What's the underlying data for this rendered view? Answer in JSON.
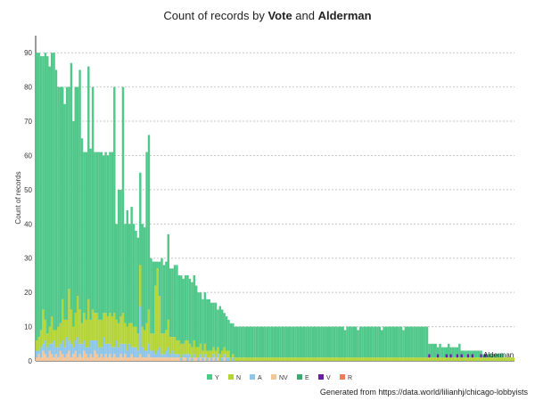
{
  "chart_data": {
    "type": "bar",
    "stacked": true,
    "title_parts": [
      "Count of records by ",
      "Vote",
      " and ",
      "Alderman"
    ],
    "ylabel": "Count of records",
    "xlabel": "",
    "ylim": [
      0,
      95
    ],
    "yticks": [
      0,
      10,
      20,
      30,
      40,
      50,
      60,
      70,
      80,
      90
    ],
    "grid": true,
    "legend_position": "bottom",
    "x_overlap_label": "Alderman",
    "series": [
      {
        "name": "Y",
        "color": "#50c88a"
      },
      {
        "name": "N",
        "color": "#b5d43a"
      },
      {
        "name": "A",
        "color": "#8ec5e8"
      },
      {
        "name": "NV",
        "color": "#f5c59a"
      },
      {
        "name": "E",
        "color": "#3aaa6e"
      },
      {
        "name": "V",
        "color": "#6a1fa0"
      },
      {
        "name": "R",
        "color": "#f07a5a"
      }
    ],
    "totals": [
      90,
      90,
      89,
      89,
      90,
      89,
      86,
      90,
      90,
      85,
      80,
      80,
      80,
      75,
      80,
      80,
      87,
      70,
      80,
      80,
      85,
      65,
      61,
      61,
      86,
      62,
      80,
      61,
      61,
      61,
      61,
      60,
      61,
      60,
      61,
      61,
      80,
      40,
      50,
      50,
      80,
      40,
      44,
      40,
      45,
      40,
      38,
      36,
      55,
      40,
      39,
      61,
      66,
      30,
      29,
      29,
      29,
      29,
      30,
      28,
      29,
      37,
      27,
      27,
      28,
      28,
      25,
      25,
      24,
      25,
      25,
      24,
      23,
      25,
      22,
      20,
      20,
      18,
      20,
      18,
      18,
      17,
      17,
      17,
      15,
      16,
      15,
      14,
      13,
      12,
      11,
      11,
      10,
      10,
      10,
      10,
      10,
      10,
      10,
      10,
      10,
      10,
      10,
      10,
      10,
      10,
      10,
      10,
      10,
      10,
      10,
      10,
      10,
      10,
      10,
      10,
      10,
      10,
      10,
      10,
      10,
      10,
      10,
      10,
      10,
      10,
      10,
      10,
      10,
      10,
      10,
      10,
      10,
      10,
      10,
      10,
      10,
      10,
      10,
      10,
      10,
      10,
      10,
      9,
      10,
      10,
      10,
      10,
      10,
      9,
      10,
      10,
      10,
      10,
      10,
      10,
      10,
      10,
      10,
      10,
      9,
      10,
      10,
      10,
      10,
      10,
      10,
      10,
      10,
      10,
      9,
      10,
      10,
      10,
      10,
      10,
      10,
      10,
      10,
      10,
      10,
      10,
      5,
      5,
      5,
      5,
      4,
      5,
      4,
      4,
      4,
      5,
      4,
      4,
      4,
      4,
      5,
      3,
      3,
      3,
      3,
      3,
      3,
      3,
      3,
      3,
      3,
      2,
      2,
      2,
      2,
      2,
      2,
      2,
      2,
      2,
      2,
      1,
      1,
      1,
      1,
      1
    ],
    "n_values": [
      3,
      4,
      5,
      10,
      6,
      4,
      5,
      8,
      3,
      5,
      6,
      6,
      12,
      8,
      5,
      15,
      10,
      6,
      8,
      12,
      10,
      6,
      8,
      8,
      14,
      6,
      9,
      8,
      8,
      8,
      8,
      7,
      9,
      8,
      9,
      9,
      10,
      6,
      7,
      8,
      9,
      6,
      7,
      6,
      7,
      6,
      6,
      5,
      12,
      6,
      6,
      8,
      10,
      5,
      5,
      20,
      24,
      15,
      6,
      6,
      6,
      8,
      5,
      4,
      5,
      4,
      4,
      4,
      3,
      4,
      4,
      3,
      3,
      4,
      3,
      3,
      3,
      2,
      3,
      2,
      2,
      2,
      2,
      2,
      2,
      2,
      2,
      2,
      2,
      2,
      1,
      1,
      1,
      1,
      1,
      1,
      1,
      1,
      1,
      1,
      1,
      1,
      1,
      1,
      1,
      1,
      1,
      1,
      1,
      1,
      1,
      1,
      1,
      1,
      1,
      1,
      1,
      1,
      1,
      1,
      1,
      1,
      1,
      1,
      1,
      1,
      1,
      1,
      1,
      1,
      1,
      1,
      1,
      1,
      1,
      1,
      1,
      1,
      1,
      1,
      1,
      1,
      1,
      1,
      1,
      1,
      1,
      1,
      1,
      1,
      1,
      1,
      1,
      1,
      1,
      1,
      1,
      1,
      1,
      1,
      1,
      1,
      1,
      1,
      1,
      1,
      1,
      1,
      1,
      1,
      1,
      1,
      1,
      1,
      1,
      1,
      1,
      1,
      1,
      1,
      1,
      1,
      1,
      1,
      1,
      1,
      1,
      1,
      1,
      1,
      1,
      1,
      1,
      1,
      1,
      1,
      1,
      1,
      1,
      1,
      1,
      1,
      1,
      1,
      1,
      1,
      1,
      1,
      1,
      1,
      1,
      1,
      1,
      1,
      1,
      1,
      1,
      1,
      1,
      1,
      1,
      1,
      1,
      1,
      1,
      1,
      1,
      1,
      1,
      1,
      1,
      1
    ],
    "a_values": [
      2,
      1,
      3,
      2,
      4,
      3,
      2,
      3,
      5,
      2,
      3,
      2,
      4,
      3,
      5,
      3,
      4,
      2,
      3,
      6,
      3,
      4,
      3,
      2,
      3,
      4,
      5,
      3,
      4,
      3,
      2,
      6,
      3,
      4,
      3,
      3,
      2,
      5,
      3,
      3,
      4,
      3,
      2,
      4,
      2,
      3,
      3,
      2,
      14,
      3,
      2,
      2,
      3,
      2,
      2,
      1,
      2,
      3,
      1,
      1,
      2,
      3,
      1,
      2,
      1,
      1,
      1,
      1,
      1,
      1,
      2,
      1,
      1,
      1,
      0,
      1,
      1,
      1,
      1,
      1,
      0,
      1,
      1,
      1,
      1,
      0,
      1,
      1,
      1,
      1,
      0,
      1,
      0,
      0,
      0,
      0,
      0,
      0,
      0,
      0,
      0,
      0,
      0,
      0,
      0,
      0,
      0,
      0,
      0,
      0,
      0,
      0,
      0,
      0,
      0,
      0,
      0,
      0,
      0,
      0,
      0,
      0,
      0,
      0,
      0,
      0,
      0,
      0,
      0,
      0,
      0,
      0,
      0,
      0,
      0,
      0,
      0,
      0,
      0,
      0,
      0,
      0,
      0,
      0,
      0,
      0,
      0,
      0,
      0,
      0,
      0,
      0,
      0,
      0,
      0,
      0,
      0,
      0,
      0,
      0,
      0,
      0,
      0,
      0,
      0,
      0,
      0,
      0,
      0,
      0,
      0,
      0,
      0,
      0,
      0,
      0,
      0,
      0,
      0,
      0,
      0,
      0,
      0,
      0,
      0,
      0,
      0,
      0,
      0,
      0,
      0,
      0,
      0,
      0,
      0,
      0,
      0,
      0,
      0,
      0,
      0,
      0,
      0,
      0,
      0,
      0,
      0,
      0,
      0,
      0,
      0,
      0,
      0,
      0,
      0,
      0,
      0,
      0,
      0,
      0,
      0,
      0,
      0,
      0
    ],
    "nv_values": [
      1,
      2,
      1,
      3,
      2,
      1,
      3,
      2,
      1,
      2,
      1,
      3,
      2,
      1,
      2,
      3,
      1,
      2,
      3,
      1,
      2,
      1,
      3,
      2,
      1,
      2,
      1,
      3,
      2,
      1,
      2,
      1,
      2,
      1,
      2,
      1,
      2,
      1,
      1,
      2,
      1,
      2,
      1,
      1,
      2,
      1,
      1,
      1,
      2,
      1,
      1,
      1,
      2,
      1,
      1,
      1,
      1,
      1,
      1,
      1,
      1,
      1,
      1,
      1,
      1,
      1,
      1,
      0,
      1,
      1,
      0,
      1,
      0,
      1,
      1,
      0,
      1,
      0,
      1,
      0,
      1,
      0,
      1,
      0,
      1,
      0,
      0,
      1,
      0,
      0,
      0,
      0,
      0,
      0,
      0,
      0,
      0,
      0,
      0,
      0,
      0,
      0,
      0,
      0,
      0,
      0,
      0,
      0,
      0,
      0,
      0,
      0,
      0,
      0,
      0,
      0,
      0,
      0,
      0,
      0,
      0,
      0,
      0,
      0,
      0,
      0,
      0,
      0,
      0,
      0,
      0,
      0,
      0,
      0,
      0,
      0,
      0,
      0,
      0,
      0,
      0,
      0,
      0,
      0,
      0,
      0,
      0,
      0,
      0,
      0,
      0,
      0,
      0,
      0,
      0,
      0,
      0,
      0,
      0,
      0,
      0,
      0,
      0,
      0,
      0,
      0,
      0,
      0,
      0,
      0,
      0,
      0,
      0,
      0,
      0,
      0,
      0,
      0,
      0,
      0,
      0,
      0,
      0,
      0,
      0,
      0,
      0,
      0,
      0,
      0,
      0,
      0,
      0,
      0,
      0,
      0,
      0,
      0,
      0,
      0,
      0,
      0,
      0,
      0,
      0,
      0,
      0,
      0,
      0,
      0,
      0,
      0,
      0,
      0,
      0,
      0,
      0,
      0,
      0,
      0,
      0,
      0,
      0,
      0,
      0,
      0,
      0
    ],
    "v_values": [
      0,
      0,
      0,
      0,
      0,
      0,
      0,
      0,
      0,
      0,
      0,
      0,
      0,
      0,
      0,
      0,
      0,
      0,
      0,
      0,
      0,
      0,
      0,
      0,
      0,
      0,
      0,
      0,
      0,
      0,
      0,
      0,
      0,
      0,
      0,
      0,
      0,
      0,
      0,
      0,
      0,
      0,
      0,
      0,
      0,
      0,
      0,
      0,
      0,
      0,
      0,
      0,
      0,
      0,
      0,
      0,
      0,
      0,
      0,
      0,
      0,
      0,
      0,
      0,
      0,
      0,
      0,
      0,
      0,
      0,
      0,
      0,
      0,
      0,
      0,
      0,
      0,
      0,
      0,
      0,
      0,
      0,
      0,
      0,
      0,
      0,
      0,
      0,
      0,
      0,
      0,
      0,
      0,
      0,
      0,
      0,
      0,
      0,
      0,
      0,
      0,
      0,
      0,
      0,
      0,
      0,
      0,
      0,
      0,
      0,
      0,
      0,
      0,
      0,
      0,
      0,
      0,
      0,
      0,
      0,
      0,
      0,
      0,
      0,
      0,
      0,
      0,
      0,
      0,
      0,
      0,
      0,
      0,
      0,
      0,
      0,
      0,
      0,
      0,
      0,
      0,
      0,
      0,
      0,
      0,
      0,
      0,
      0,
      0,
      0,
      0,
      0,
      0,
      0,
      0,
      0,
      0,
      0,
      0,
      0,
      0,
      0,
      0,
      0,
      0,
      0,
      0,
      0,
      0,
      0,
      0,
      0,
      0,
      0,
      0,
      0,
      0,
      0,
      0,
      0,
      0,
      0,
      1,
      0,
      0,
      0,
      1,
      0,
      0,
      0,
      1,
      0,
      1,
      0,
      0,
      1,
      0,
      1,
      0,
      0,
      1,
      0,
      1,
      0,
      0,
      0,
      1,
      0,
      1,
      0,
      0,
      0,
      0,
      0,
      0,
      0,
      0,
      0,
      0,
      0,
      0,
      0
    ]
  },
  "footer": "Generated from https://data.world/lilianhj/chicago-lobbyists"
}
